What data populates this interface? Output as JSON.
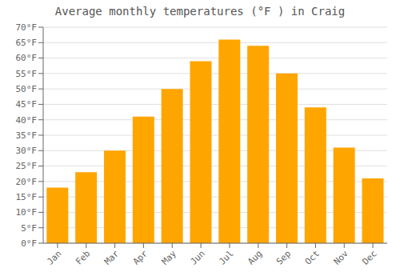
{
  "chart_data": {
    "type": "bar",
    "title": "Average monthly temperatures (°F ) in Craig",
    "categories": [
      "Jan",
      "Feb",
      "Mar",
      "Apr",
      "May",
      "Jun",
      "Jul",
      "Aug",
      "Sep",
      "Oct",
      "Nov",
      "Dec"
    ],
    "values": [
      18,
      23,
      30,
      41,
      50,
      59,
      66,
      64,
      55,
      44,
      31,
      21
    ],
    "color": "#FFA500",
    "ylim": [
      0,
      70
    ],
    "yticks": [
      {
        "value": 0,
        "label": "0°F"
      },
      {
        "value": 5,
        "label": "5°F"
      },
      {
        "value": 10,
        "label": "10°F"
      },
      {
        "value": 15,
        "label": "15°F"
      },
      {
        "value": 20,
        "label": "20°F"
      },
      {
        "value": 25,
        "label": "25°F"
      },
      {
        "value": 30,
        "label": "30°F"
      },
      {
        "value": 35,
        "label": "35°F"
      },
      {
        "value": 40,
        "label": "40°F"
      },
      {
        "value": 45,
        "label": "45°F"
      },
      {
        "value": 50,
        "label": "50°F"
      },
      {
        "value": 55,
        "label": "55°F"
      },
      {
        "value": 60,
        "label": "60°F"
      },
      {
        "value": 65,
        "label": "65°F"
      },
      {
        "value": 70,
        "label": "70°F"
      }
    ],
    "grid": true
  }
}
